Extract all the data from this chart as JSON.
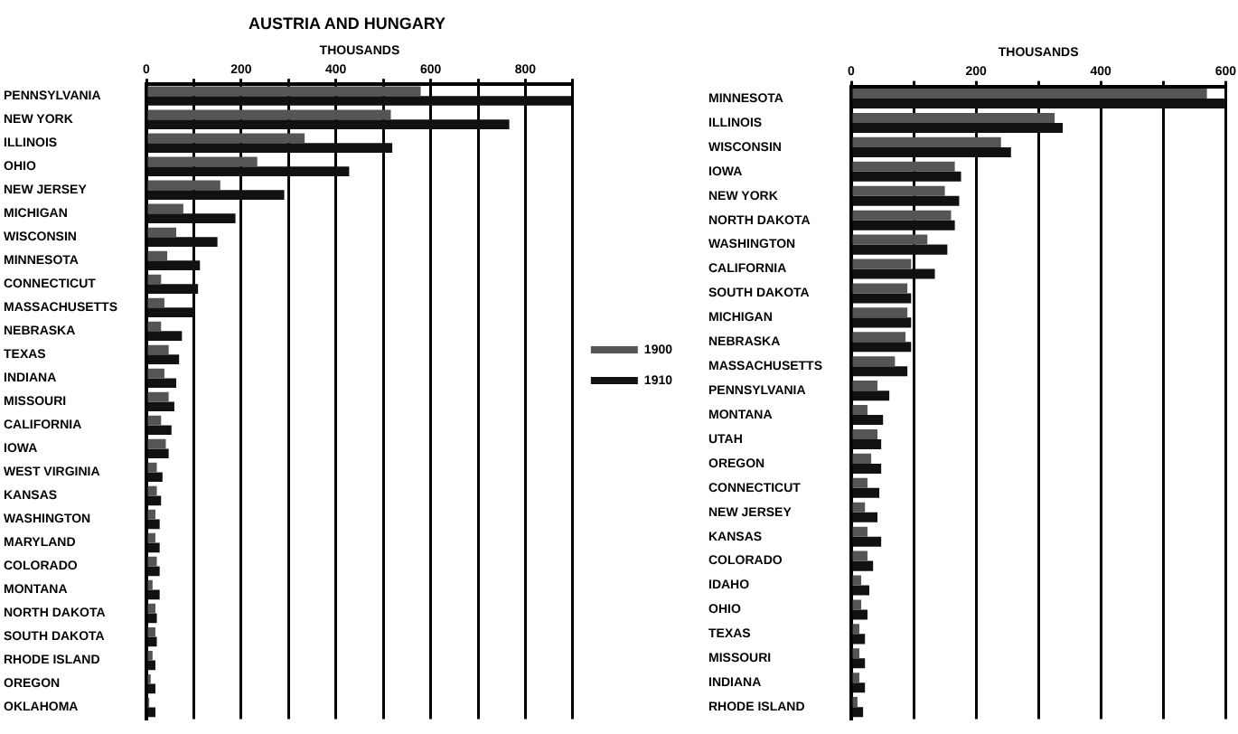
{
  "chart_data": [
    {
      "type": "bar",
      "orientation": "horizontal",
      "title": "AUSTRIA AND HUNGARY",
      "xlabel": "THOUSANDS",
      "grid": "x",
      "legend": "right",
      "categories": [
        "PENNSYLVANIA",
        "NEW YORK",
        "ILLINOIS",
        "OHIO",
        "NEW JERSEY",
        "MICHIGAN",
        "WISCONSIN",
        "MINNESOTA",
        "CONNECTICUT",
        "MASSACHUSETTS",
        "NEBRASKA",
        "TEXAS",
        "INDIANA",
        "MISSOURI",
        "CALIFORNIA",
        "IOWA",
        "WEST VIRGINIA",
        "KANSAS",
        "WASHINGTON",
        "MARYLAND",
        "COLORADO",
        "MONTANA",
        "NORTH DAKOTA",
        "SOUTH DAKOTA",
        "RHODE ISLAND",
        "OREGON",
        "OKLAHOMA"
      ],
      "xlim": [
        0,
        900
      ],
      "xticks": [
        0,
        {
          "value": 100,
          "label": null
        },
        200,
        {
          "value": 300,
          "label": null
        },
        400,
        {
          "value": 500,
          "label": null
        },
        600,
        {
          "value": 700,
          "label": null
        },
        800,
        {
          "value": 900,
          "label": null
        }
      ],
      "series": [
        {
          "name": "1900",
          "color": "#555555",
          "values": [
            579,
            516,
            334,
            234,
            156,
            78,
            63,
            44,
            31,
            38,
            31,
            47,
            38,
            47,
            31,
            41,
            22,
            22,
            19,
            19,
            22,
            13,
            19,
            19,
            13,
            9,
            6
          ]
        },
        {
          "name": "1910",
          "color": "#111111",
          "values": [
            897,
            766,
            519,
            428,
            291,
            188,
            150,
            113,
            109,
            100,
            75,
            69,
            63,
            59,
            53,
            47,
            34,
            31,
            28,
            28,
            28,
            28,
            22,
            22,
            19,
            19,
            19
          ]
        }
      ]
    },
    {
      "type": "bar",
      "orientation": "horizontal",
      "xlabel": "THOUSANDS",
      "grid": "x",
      "categories": [
        "MINNESOTA",
        "ILLINOIS",
        "WISCONSIN",
        "IOWA",
        "NEW YORK",
        "NORTH DAKOTA",
        "WASHINGTON",
        "CALIFORNIA",
        "SOUTH DAKOTA",
        "MICHIGAN",
        "NEBRASKA",
        "MASSACHUSETTS",
        "PENNSYLVANIA",
        "MONTANA",
        "UTAH",
        "OREGON",
        "CONNECTICUT",
        "NEW JERSEY",
        "KANSAS",
        "COLORADO",
        "IDAHO",
        "OHIO",
        "TEXAS",
        "MISSOURI",
        "INDIANA",
        "RHODE ISLAND"
      ],
      "xlim": [
        0,
        600
      ],
      "xticks": [
        0,
        {
          "value": 100,
          "label": null
        },
        200,
        {
          "value": 300,
          "label": null
        },
        400,
        {
          "value": 500,
          "label": null
        },
        600
      ],
      "series": [
        {
          "color": "#555555",
          "values": [
            570,
            326,
            240,
            166,
            150,
            160,
            122,
            96,
            90,
            90,
            87,
            70,
            42,
            26,
            42,
            32,
            26,
            22,
            26,
            26,
            16,
            16,
            13,
            13,
            13,
            10
          ]
        },
        {
          "color": "#111111",
          "values": [
            598,
            339,
            256,
            176,
            173,
            166,
            154,
            134,
            96,
            96,
            96,
            90,
            61,
            51,
            48,
            48,
            45,
            42,
            48,
            35,
            29,
            26,
            22,
            22,
            22,
            19
          ]
        }
      ]
    }
  ]
}
